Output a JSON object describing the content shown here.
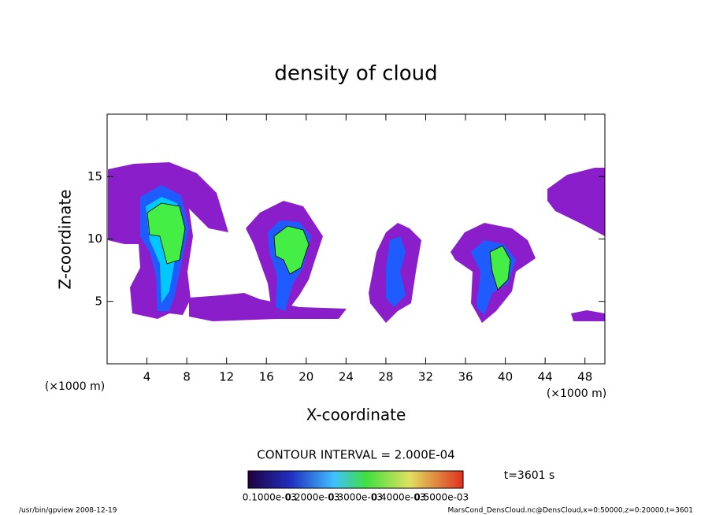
{
  "chart_data": {
    "type": "contour",
    "title": "density of cloud",
    "xlabel": "X-coordinate",
    "ylabel": "Z-coordinate",
    "xunit": "(×1000 m)",
    "yunit": "(×1000 m)",
    "xlim": [
      0,
      50
    ],
    "ylim": [
      0,
      20
    ],
    "xticks": [
      4,
      8,
      12,
      16,
      20,
      24,
      28,
      32,
      36,
      40,
      44,
      48
    ],
    "yticks": [
      5,
      10,
      15
    ],
    "contour_interval": "CONTOUR INTERVAL = 2.000E-04",
    "time": "t=3601 s",
    "colorbar_labels": [
      "0.1000e-03",
      "0.2000e-03",
      "0.3000e-03",
      "0.4000e-03",
      "0.5000e-03"
    ],
    "footer_left": "/usr/bin/gpview  2008-12-19",
    "footer_right": "MarsCond_DensCloud.nc@DensCloud,x=0:50000,z=0:20000,t=3601"
  }
}
